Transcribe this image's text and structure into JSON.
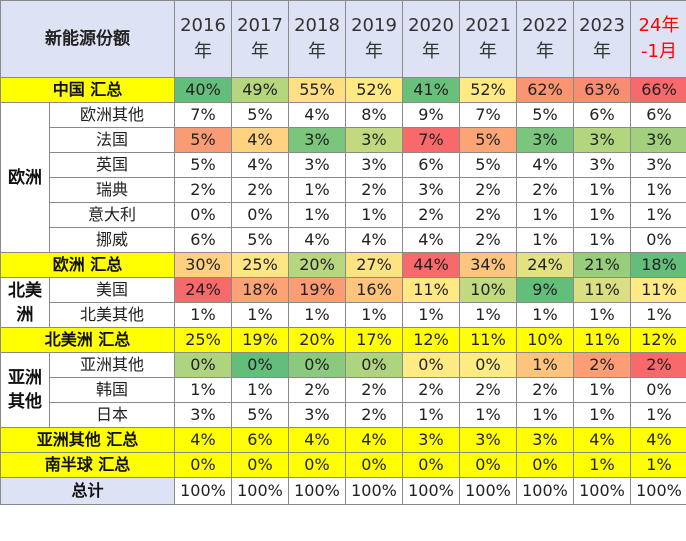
{
  "header": {
    "title": "新能源份额",
    "years": [
      {
        "line1": "2016",
        "line2": "年"
      },
      {
        "line1": "2017",
        "line2": "年"
      },
      {
        "line1": "2018",
        "line2": "年"
      },
      {
        "line1": "2019",
        "line2": "年"
      },
      {
        "line1": "2020",
        "line2": "年"
      },
      {
        "line1": "2021",
        "line2": "年"
      },
      {
        "line1": "2022",
        "line2": "年"
      },
      {
        "line1": "2023",
        "line2": "年"
      },
      {
        "line1": "24年",
        "line2": "-1月"
      }
    ]
  },
  "regions": {
    "europe": "欧洲",
    "north_america_line1": "北美",
    "north_america_line2": "洲",
    "asia_line1": "亚洲",
    "asia_line2": "其他"
  },
  "rows": [
    {
      "label": "中国 汇总",
      "values": [
        "40%",
        "49%",
        "55%",
        "52%",
        "41%",
        "52%",
        "62%",
        "63%",
        "66%"
      ]
    },
    {
      "label": "欧洲其他",
      "values": [
        "7%",
        "5%",
        "4%",
        "8%",
        "9%",
        "7%",
        "5%",
        "6%",
        "6%"
      ]
    },
    {
      "label": "法国",
      "values": [
        "5%",
        "4%",
        "3%",
        "3%",
        "7%",
        "5%",
        "3%",
        "3%",
        "3%"
      ]
    },
    {
      "label": "英国",
      "values": [
        "5%",
        "4%",
        "3%",
        "3%",
        "6%",
        "5%",
        "4%",
        "3%",
        "3%"
      ]
    },
    {
      "label": "瑞典",
      "values": [
        "2%",
        "2%",
        "1%",
        "2%",
        "3%",
        "2%",
        "2%",
        "1%",
        "1%"
      ]
    },
    {
      "label": "意大利",
      "values": [
        "0%",
        "0%",
        "1%",
        "1%",
        "2%",
        "2%",
        "1%",
        "1%",
        "1%"
      ]
    },
    {
      "label": "挪威",
      "values": [
        "6%",
        "5%",
        "4%",
        "4%",
        "4%",
        "2%",
        "1%",
        "1%",
        "0%"
      ]
    },
    {
      "label": "欧洲 汇总",
      "values": [
        "30%",
        "25%",
        "20%",
        "27%",
        "44%",
        "34%",
        "24%",
        "21%",
        "18%"
      ]
    },
    {
      "label": "美国",
      "values": [
        "24%",
        "18%",
        "19%",
        "16%",
        "11%",
        "10%",
        "9%",
        "11%",
        "11%"
      ]
    },
    {
      "label": "北美其他",
      "values": [
        "1%",
        "1%",
        "1%",
        "1%",
        "1%",
        "1%",
        "1%",
        "1%",
        "1%"
      ]
    },
    {
      "label": "北美洲 汇总",
      "values": [
        "25%",
        "19%",
        "20%",
        "17%",
        "12%",
        "11%",
        "10%",
        "11%",
        "12%"
      ]
    },
    {
      "label": "亚洲其他",
      "values": [
        "0%",
        "0%",
        "0%",
        "0%",
        "0%",
        "0%",
        "1%",
        "2%",
        "2%"
      ]
    },
    {
      "label": "韩国",
      "values": [
        "1%",
        "1%",
        "2%",
        "2%",
        "2%",
        "2%",
        "2%",
        "1%",
        "0%"
      ]
    },
    {
      "label": "日本",
      "values": [
        "3%",
        "5%",
        "3%",
        "2%",
        "1%",
        "1%",
        "1%",
        "1%",
        "1%"
      ]
    },
    {
      "label": "亚洲其他 汇总",
      "values": [
        "4%",
        "6%",
        "4%",
        "4%",
        "3%",
        "3%",
        "3%",
        "4%",
        "4%"
      ]
    },
    {
      "label": "南半球 汇总",
      "values": [
        "0%",
        "0%",
        "0%",
        "0%",
        "0%",
        "0%",
        "0%",
        "1%",
        "1%"
      ]
    },
    {
      "label": "总计",
      "values": [
        "100%",
        "100%",
        "100%",
        "100%",
        "100%",
        "100%",
        "100%",
        "100%",
        "100%"
      ]
    }
  ],
  "colors": {
    "header_bg": "#dde3f4",
    "total_row_bg": "#ffff00",
    "highlight_red_text": "#ff0000",
    "heatmap_low": "#63be7b",
    "heatmap_mid": "#ffeb84",
    "heatmap_high": "#f8696b"
  },
  "cell_colors": {
    "0": [
      "#63be7b",
      "#b5d57f",
      "#fedf81",
      "#fee983",
      "#69c07b",
      "#fee983",
      "#fa9473",
      "#f98d72",
      "#f8696b"
    ],
    "2": [
      "#f99b74",
      "#fed280",
      "#7cc57d",
      "#c2d97f",
      "#f8696b",
      "#fba475",
      "#7cc57d",
      "#b3d57e",
      "#a2d07e"
    ],
    "7": [
      "#fdd17f",
      "#ffe684",
      "#b7d67e",
      "#ffe383",
      "#f8696b",
      "#fdc57d",
      "#e3e283",
      "#98cd7e",
      "#63be7b"
    ],
    "8": [
      "#f8696b",
      "#fba276",
      "#fb9c75",
      "#fdc47d",
      "#fee983",
      "#c2d980",
      "#63be7b",
      "#d9df82",
      "#ffea84"
    ],
    "11": [
      "#aed47f",
      "#63be7b",
      "#8bc97e",
      "#aed47f",
      "#ffeb84",
      "#ffeb84",
      "#fdc47d",
      "#fb9d75",
      "#f8696b"
    ]
  }
}
